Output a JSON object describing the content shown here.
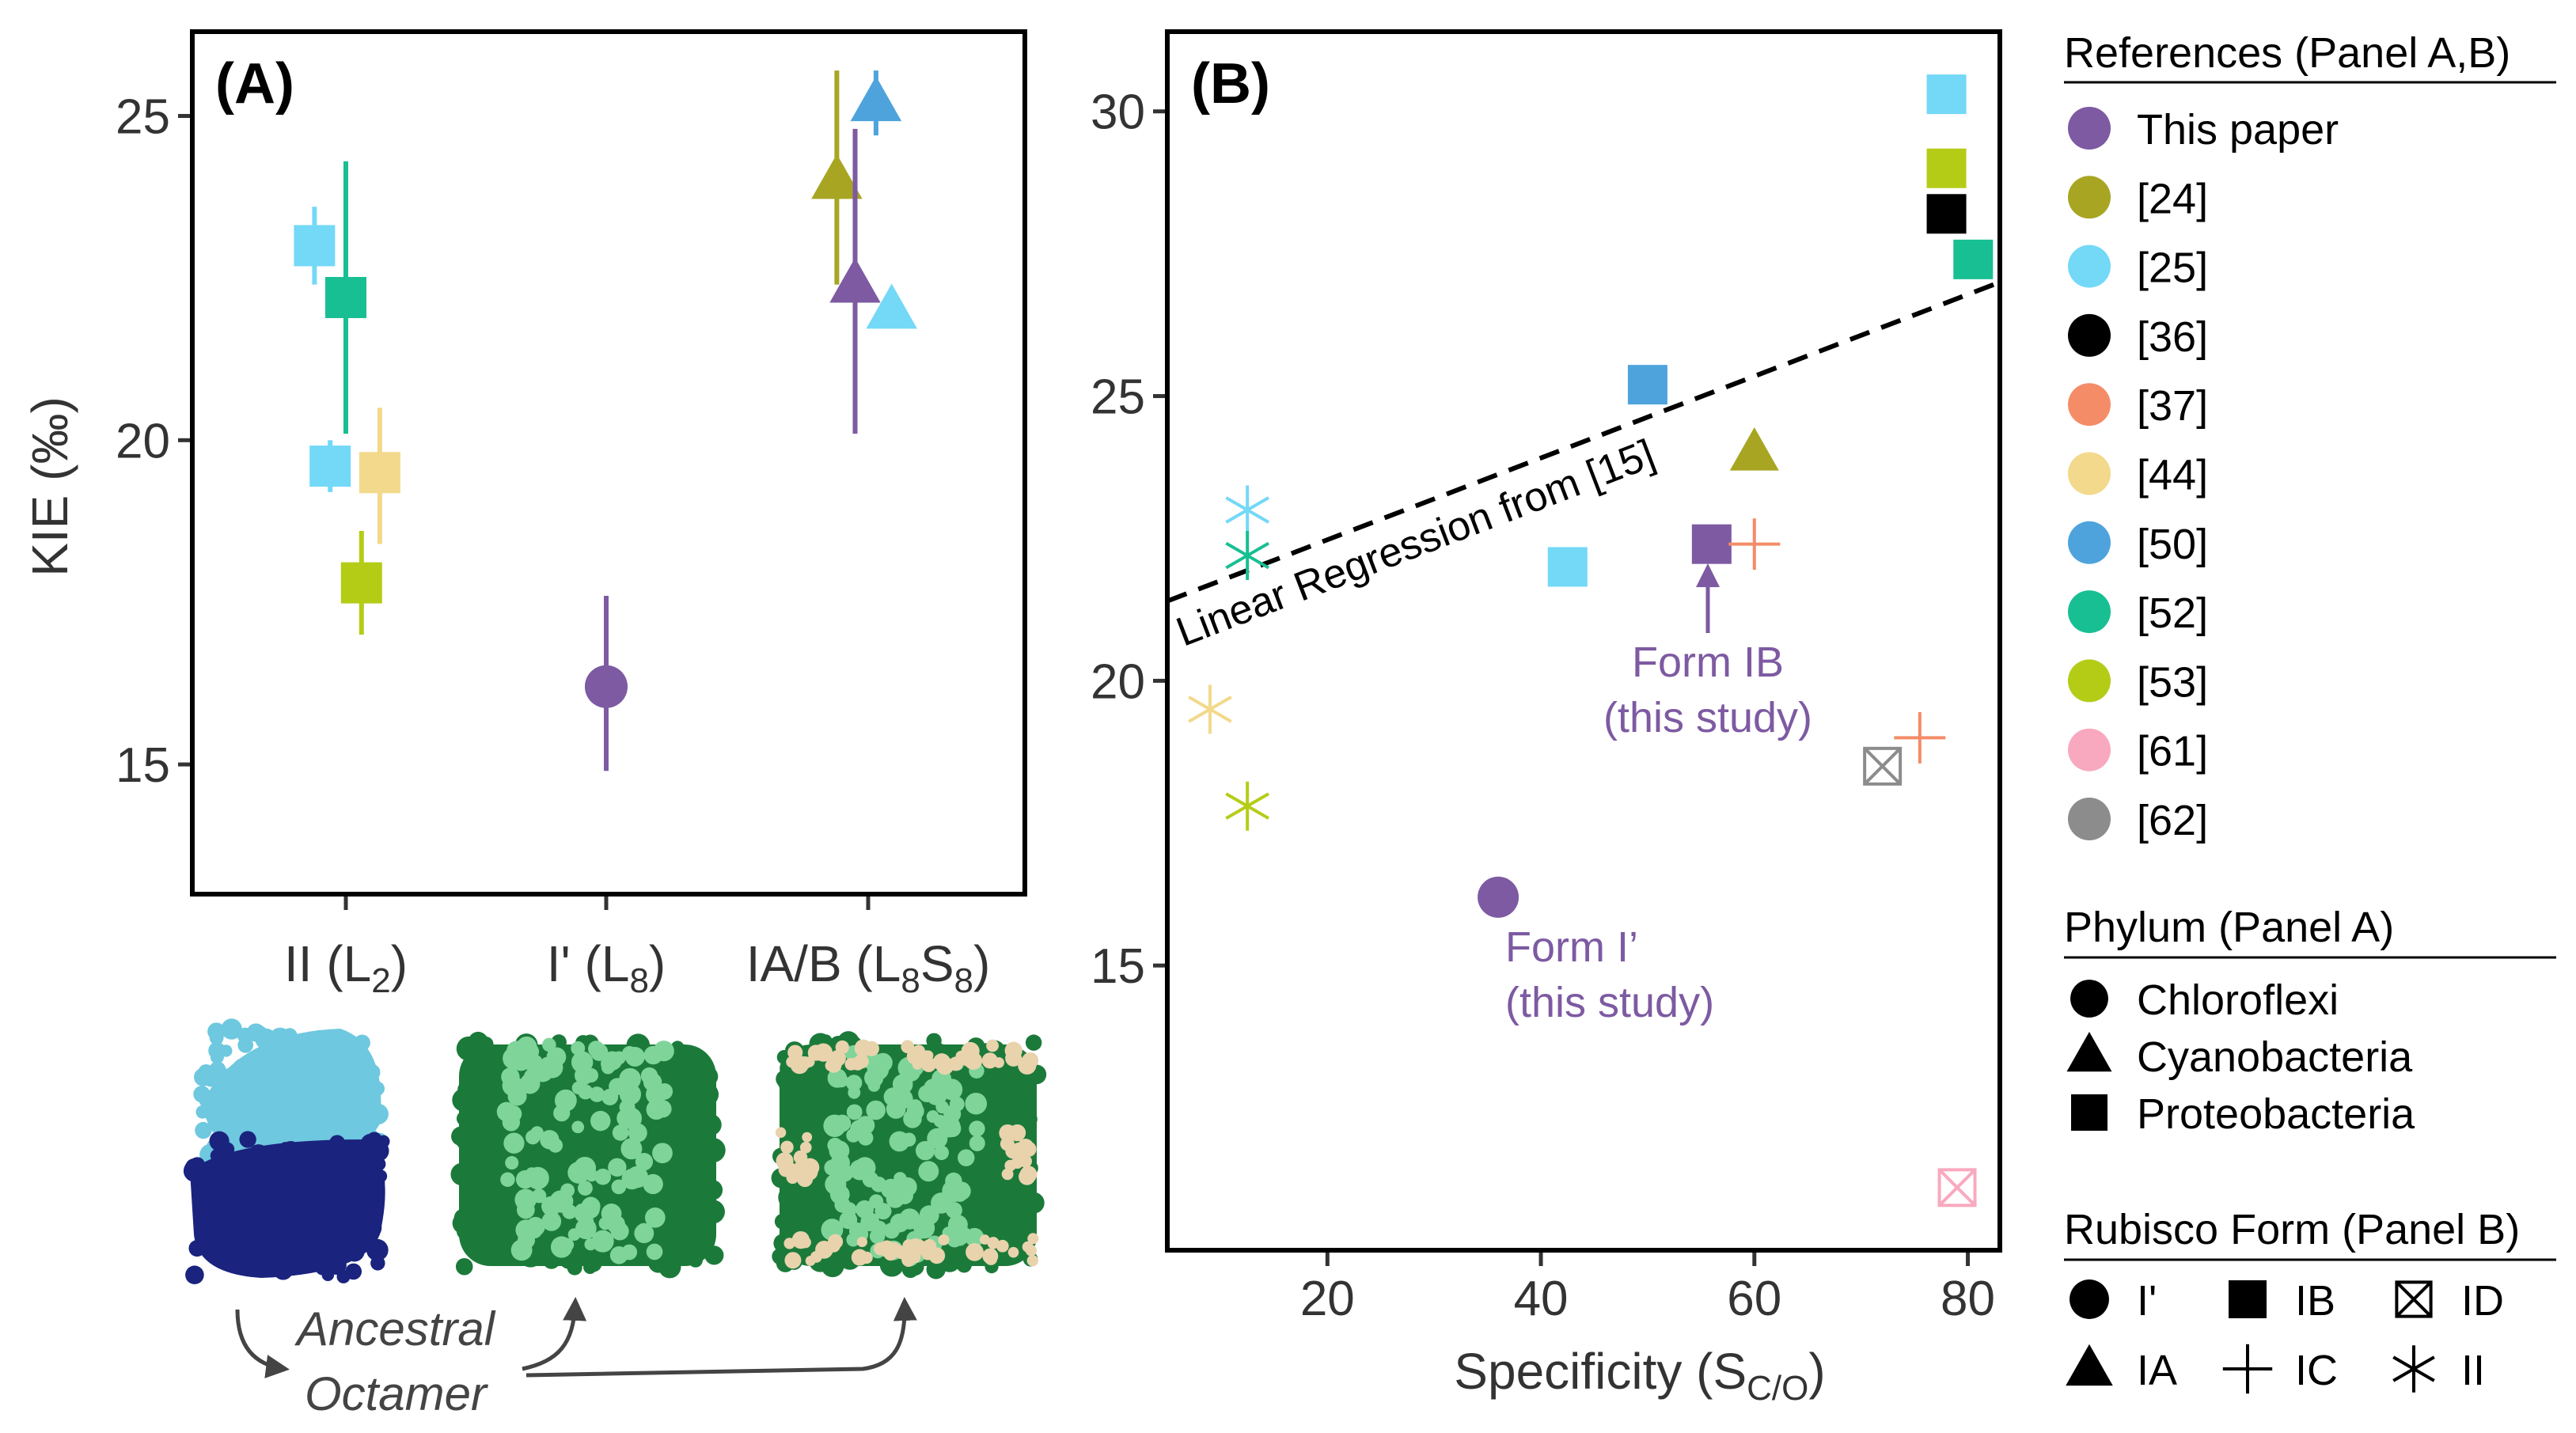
{
  "chart_data": [
    {
      "panel_label": "(A)",
      "type": "scatter",
      "ylabel": "KIE (‰)",
      "ylim": [
        13.0,
        26.3
      ],
      "yticks": [
        15,
        20,
        25
      ],
      "categories": [
        "II (L2)",
        "I' (L8)",
        "IA/B (L8S8)"
      ],
      "category_labels": [
        {
          "main": "II (L",
          "sub": "2",
          "tail": ")"
        },
        {
          "main": "I' (L",
          "sub": "8",
          "tail": ")"
        },
        {
          "main": "IA/B (L",
          "sub": "8",
          "mid": "S",
          "sub2": "8",
          "tail": ")"
        }
      ],
      "points": [
        {
          "cat": 0,
          "offset": -0.12,
          "y": 23.0,
          "err": [
            22.4,
            23.6
          ],
          "ref": "[25]",
          "shape": "square"
        },
        {
          "cat": 0,
          "offset": 0.0,
          "y": 22.2,
          "err": [
            20.1,
            24.3
          ],
          "ref": "[52]",
          "shape": "square"
        },
        {
          "cat": 0,
          "offset": -0.06,
          "y": 19.6,
          "err": [
            19.2,
            20.0
          ],
          "ref": "[25]",
          "shape": "square"
        },
        {
          "cat": 0,
          "offset": 0.13,
          "y": 19.5,
          "err": [
            18.4,
            20.5
          ],
          "ref": "[44]",
          "shape": "square"
        },
        {
          "cat": 0,
          "offset": 0.06,
          "y": 17.8,
          "err": [
            17.0,
            18.6
          ],
          "ref": "[53]",
          "shape": "square"
        },
        {
          "cat": 1,
          "offset": 0.0,
          "y": 16.2,
          "err": [
            14.9,
            17.6
          ],
          "ref": "This paper",
          "shape": "circle"
        },
        {
          "cat": 2,
          "offset": -0.12,
          "y": 24.0,
          "err": [
            22.4,
            25.7
          ],
          "ref": "[24]",
          "shape": "triangle"
        },
        {
          "cat": 2,
          "offset": -0.05,
          "y": 22.4,
          "err": [
            20.1,
            24.8
          ],
          "ref": "This paper",
          "shape": "triangle"
        },
        {
          "cat": 2,
          "offset": 0.03,
          "y": 25.2,
          "err": [
            24.7,
            25.7
          ],
          "ref": "[50]",
          "shape": "triangle"
        },
        {
          "cat": 2,
          "offset": 0.09,
          "y": 22.0,
          "err": null,
          "ref": "[25]",
          "shape": "triangle"
        }
      ],
      "structures": [
        {
          "name": "form-ii-dimer",
          "colors": [
            "#6ec8df",
            "#1a237e"
          ]
        },
        {
          "name": "form-i-prime-octamer",
          "colors": [
            "#7fd49a",
            "#1b7a3a"
          ]
        },
        {
          "name": "form-iab-hexadecamer",
          "colors": [
            "#1b7a3a",
            "#7fd49a",
            "#e8d3ad"
          ]
        }
      ],
      "annotation": {
        "line1": "Ancestral",
        "line2": "Octamer"
      }
    },
    {
      "panel_label": "(B)",
      "type": "scatter",
      "xlabel_main": "Specificity (S",
      "xlabel_sub": "C/O",
      "xlabel_tail": ")",
      "xlim": [
        5,
        83
      ],
      "ylim": [
        10.0,
        31.4
      ],
      "xticks": [
        20,
        40,
        60,
        80
      ],
      "yticks": [
        15,
        20,
        25,
        30
      ],
      "regression": {
        "label": "Linear Regression from [15]",
        "p1": [
          5,
          21.4
        ],
        "p2": [
          83,
          27.0
        ]
      },
      "points": [
        {
          "x": 78,
          "y": 30.3,
          "ref": "[25]",
          "shape": "square"
        },
        {
          "x": 78,
          "y": 29.0,
          "ref": "[53]",
          "shape": "square"
        },
        {
          "x": 78,
          "y": 28.2,
          "ref": "[36]",
          "shape": "square"
        },
        {
          "x": 80.5,
          "y": 27.4,
          "ref": "[52]",
          "shape": "square"
        },
        {
          "x": 50,
          "y": 25.2,
          "ref": "[50]",
          "shape": "square"
        },
        {
          "x": 60,
          "y": 24.0,
          "ref": "[24]",
          "shape": "triangle"
        },
        {
          "x": 42.5,
          "y": 22.0,
          "ref": "[25]",
          "shape": "square"
        },
        {
          "x": 56,
          "y": 22.4,
          "ref": "This paper",
          "shape": "square"
        },
        {
          "x": 60,
          "y": 22.4,
          "ref": "[37]",
          "shape": "plus"
        },
        {
          "x": 75.5,
          "y": 19.0,
          "ref": "[37]",
          "shape": "plus"
        },
        {
          "x": 72,
          "y": 18.5,
          "ref": "[62]",
          "shape": "xsquare"
        },
        {
          "x": 79,
          "y": 11.1,
          "ref": "[61]",
          "shape": "xsquare"
        },
        {
          "x": 12.5,
          "y": 23.0,
          "ref": "[25]",
          "shape": "asterisk"
        },
        {
          "x": 12.5,
          "y": 22.2,
          "ref": "[52]",
          "shape": "asterisk"
        },
        {
          "x": 9,
          "y": 19.5,
          "ref": "[44]",
          "shape": "asterisk"
        },
        {
          "x": 12.5,
          "y": 17.8,
          "ref": "[53]",
          "shape": "asterisk"
        },
        {
          "x": 36,
          "y": 16.2,
          "ref": "This paper",
          "shape": "circle"
        }
      ],
      "annotations": [
        {
          "id": "form-ib",
          "line1": "Form IB",
          "line2": "(this study)"
        },
        {
          "id": "form-i-prime",
          "line1": "Form I’",
          "line2": "(this study)"
        }
      ]
    }
  ],
  "legend": {
    "references_title": "References (Panel A,B)",
    "references": [
      {
        "label": "This paper",
        "color": "#7d5aa2"
      },
      {
        "label": "[24]",
        "color": "#a8a523"
      },
      {
        "label": "[25]",
        "color": "#74d8f7"
      },
      {
        "label": "[36]",
        "color": "#000000"
      },
      {
        "label": "[37]",
        "color": "#f48c68"
      },
      {
        "label": "[44]",
        "color": "#f2d98b"
      },
      {
        "label": "[50]",
        "color": "#4ea3dc"
      },
      {
        "label": "[52]",
        "color": "#18bf93"
      },
      {
        "label": "[53]",
        "color": "#b5cc17"
      },
      {
        "label": "[61]",
        "color": "#f9a9bf"
      },
      {
        "label": "[62]",
        "color": "#8c8c8c"
      }
    ],
    "phylum_title": "Phylum (Panel A)",
    "phylum": [
      {
        "label": "Chloroflexi",
        "shape": "circle"
      },
      {
        "label": "Cyanobacteria",
        "shape": "triangle"
      },
      {
        "label": "Proteobacteria",
        "shape": "square"
      }
    ],
    "form_title": "Rubisco Form (Panel B)",
    "forms": [
      {
        "label": "I'",
        "shape": "circle"
      },
      {
        "label": "IB",
        "shape": "square"
      },
      {
        "label": "ID",
        "shape": "xsquare"
      },
      {
        "label": "IA",
        "shape": "triangle"
      },
      {
        "label": "IC",
        "shape": "plus"
      },
      {
        "label": "II",
        "shape": "asterisk"
      }
    ]
  }
}
